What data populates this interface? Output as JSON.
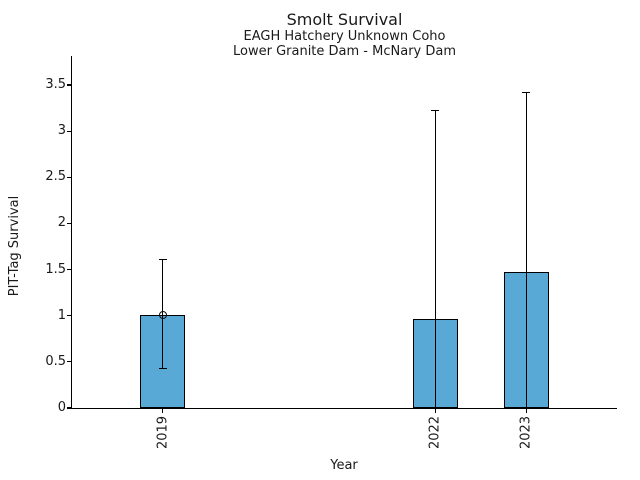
{
  "figure": {
    "title": "Smolt Survival",
    "subtitle_lines": [
      "EAGH Hatchery Unknown Coho",
      "Lower Granite Dam - McNary Dam"
    ]
  },
  "chart_data": {
    "type": "bar",
    "title": "Smolt Survival",
    "subtitle": [
      "EAGH Hatchery Unknown Coho",
      "Lower Granite Dam - McNary Dam"
    ],
    "xlabel": "Year",
    "ylabel": "PIT-Tag Survival",
    "categories": [
      2019,
      2022,
      2023
    ],
    "values": [
      1.01,
      0.96,
      1.47
    ],
    "error_low": [
      0.43,
      0,
      0
    ],
    "error_high": [
      1.61,
      3.22,
      3.42
    ],
    "point_marker_shown": [
      true,
      false,
      false
    ],
    "xlim": [
      2018,
      2024
    ],
    "ylim": [
      0,
      3.5
    ],
    "yticks": [
      0,
      0.5,
      1,
      1.5,
      2,
      2.5,
      3,
      3.5
    ],
    "grid": false,
    "legend": null,
    "colors": {
      "bar_fill": "#58A9D6",
      "bar_edge": "#000000",
      "error_bar": "#000000",
      "text": "#1a1a1a",
      "background": "#ffffff"
    }
  }
}
